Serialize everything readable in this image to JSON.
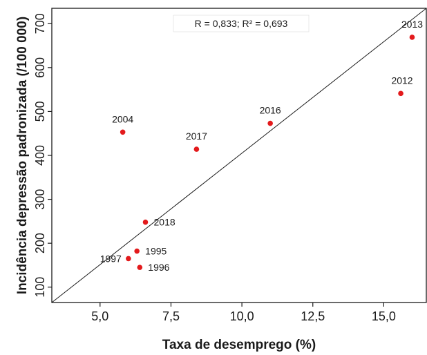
{
  "chart_data": {
    "type": "scatter",
    "xlabel": "Taxa de desemprego (%)",
    "ylabel": "Incidência depressão padronizada (/100 000)",
    "xlim": [
      3.3,
      16.5
    ],
    "ylim": [
      65,
      735
    ],
    "x_ticks": [
      5.0,
      7.5,
      10.0,
      12.5,
      15.0
    ],
    "x_tick_labels": [
      "5,0",
      "7,5",
      "10,0",
      "12,5",
      "15,0"
    ],
    "y_ticks": [
      100,
      200,
      300,
      400,
      500,
      600,
      700
    ],
    "y_tick_labels": [
      "100",
      "200",
      "300",
      "400",
      "500",
      "600",
      "700"
    ],
    "annotation": "R = 0,833; R² = 0,693",
    "regression_line": {
      "x": [
        3.3,
        16.5
      ],
      "y": [
        65,
        735
      ]
    },
    "points": [
      {
        "label": "1995",
        "x": 6.3,
        "y": 182
      },
      {
        "label": "1996",
        "x": 6.4,
        "y": 145
      },
      {
        "label": "1997",
        "x": 6.0,
        "y": 165
      },
      {
        "label": "2004",
        "x": 5.8,
        "y": 453
      },
      {
        "label": "2012",
        "x": 15.6,
        "y": 541
      },
      {
        "label": "2013",
        "x": 16.0,
        "y": 669
      },
      {
        "label": "2016",
        "x": 11.0,
        "y": 473
      },
      {
        "label": "2017",
        "x": 8.4,
        "y": 414
      },
      {
        "label": "2018",
        "x": 6.6,
        "y": 248
      }
    ],
    "point_color": "#e31a1c",
    "grid": false,
    "legend": "none"
  }
}
